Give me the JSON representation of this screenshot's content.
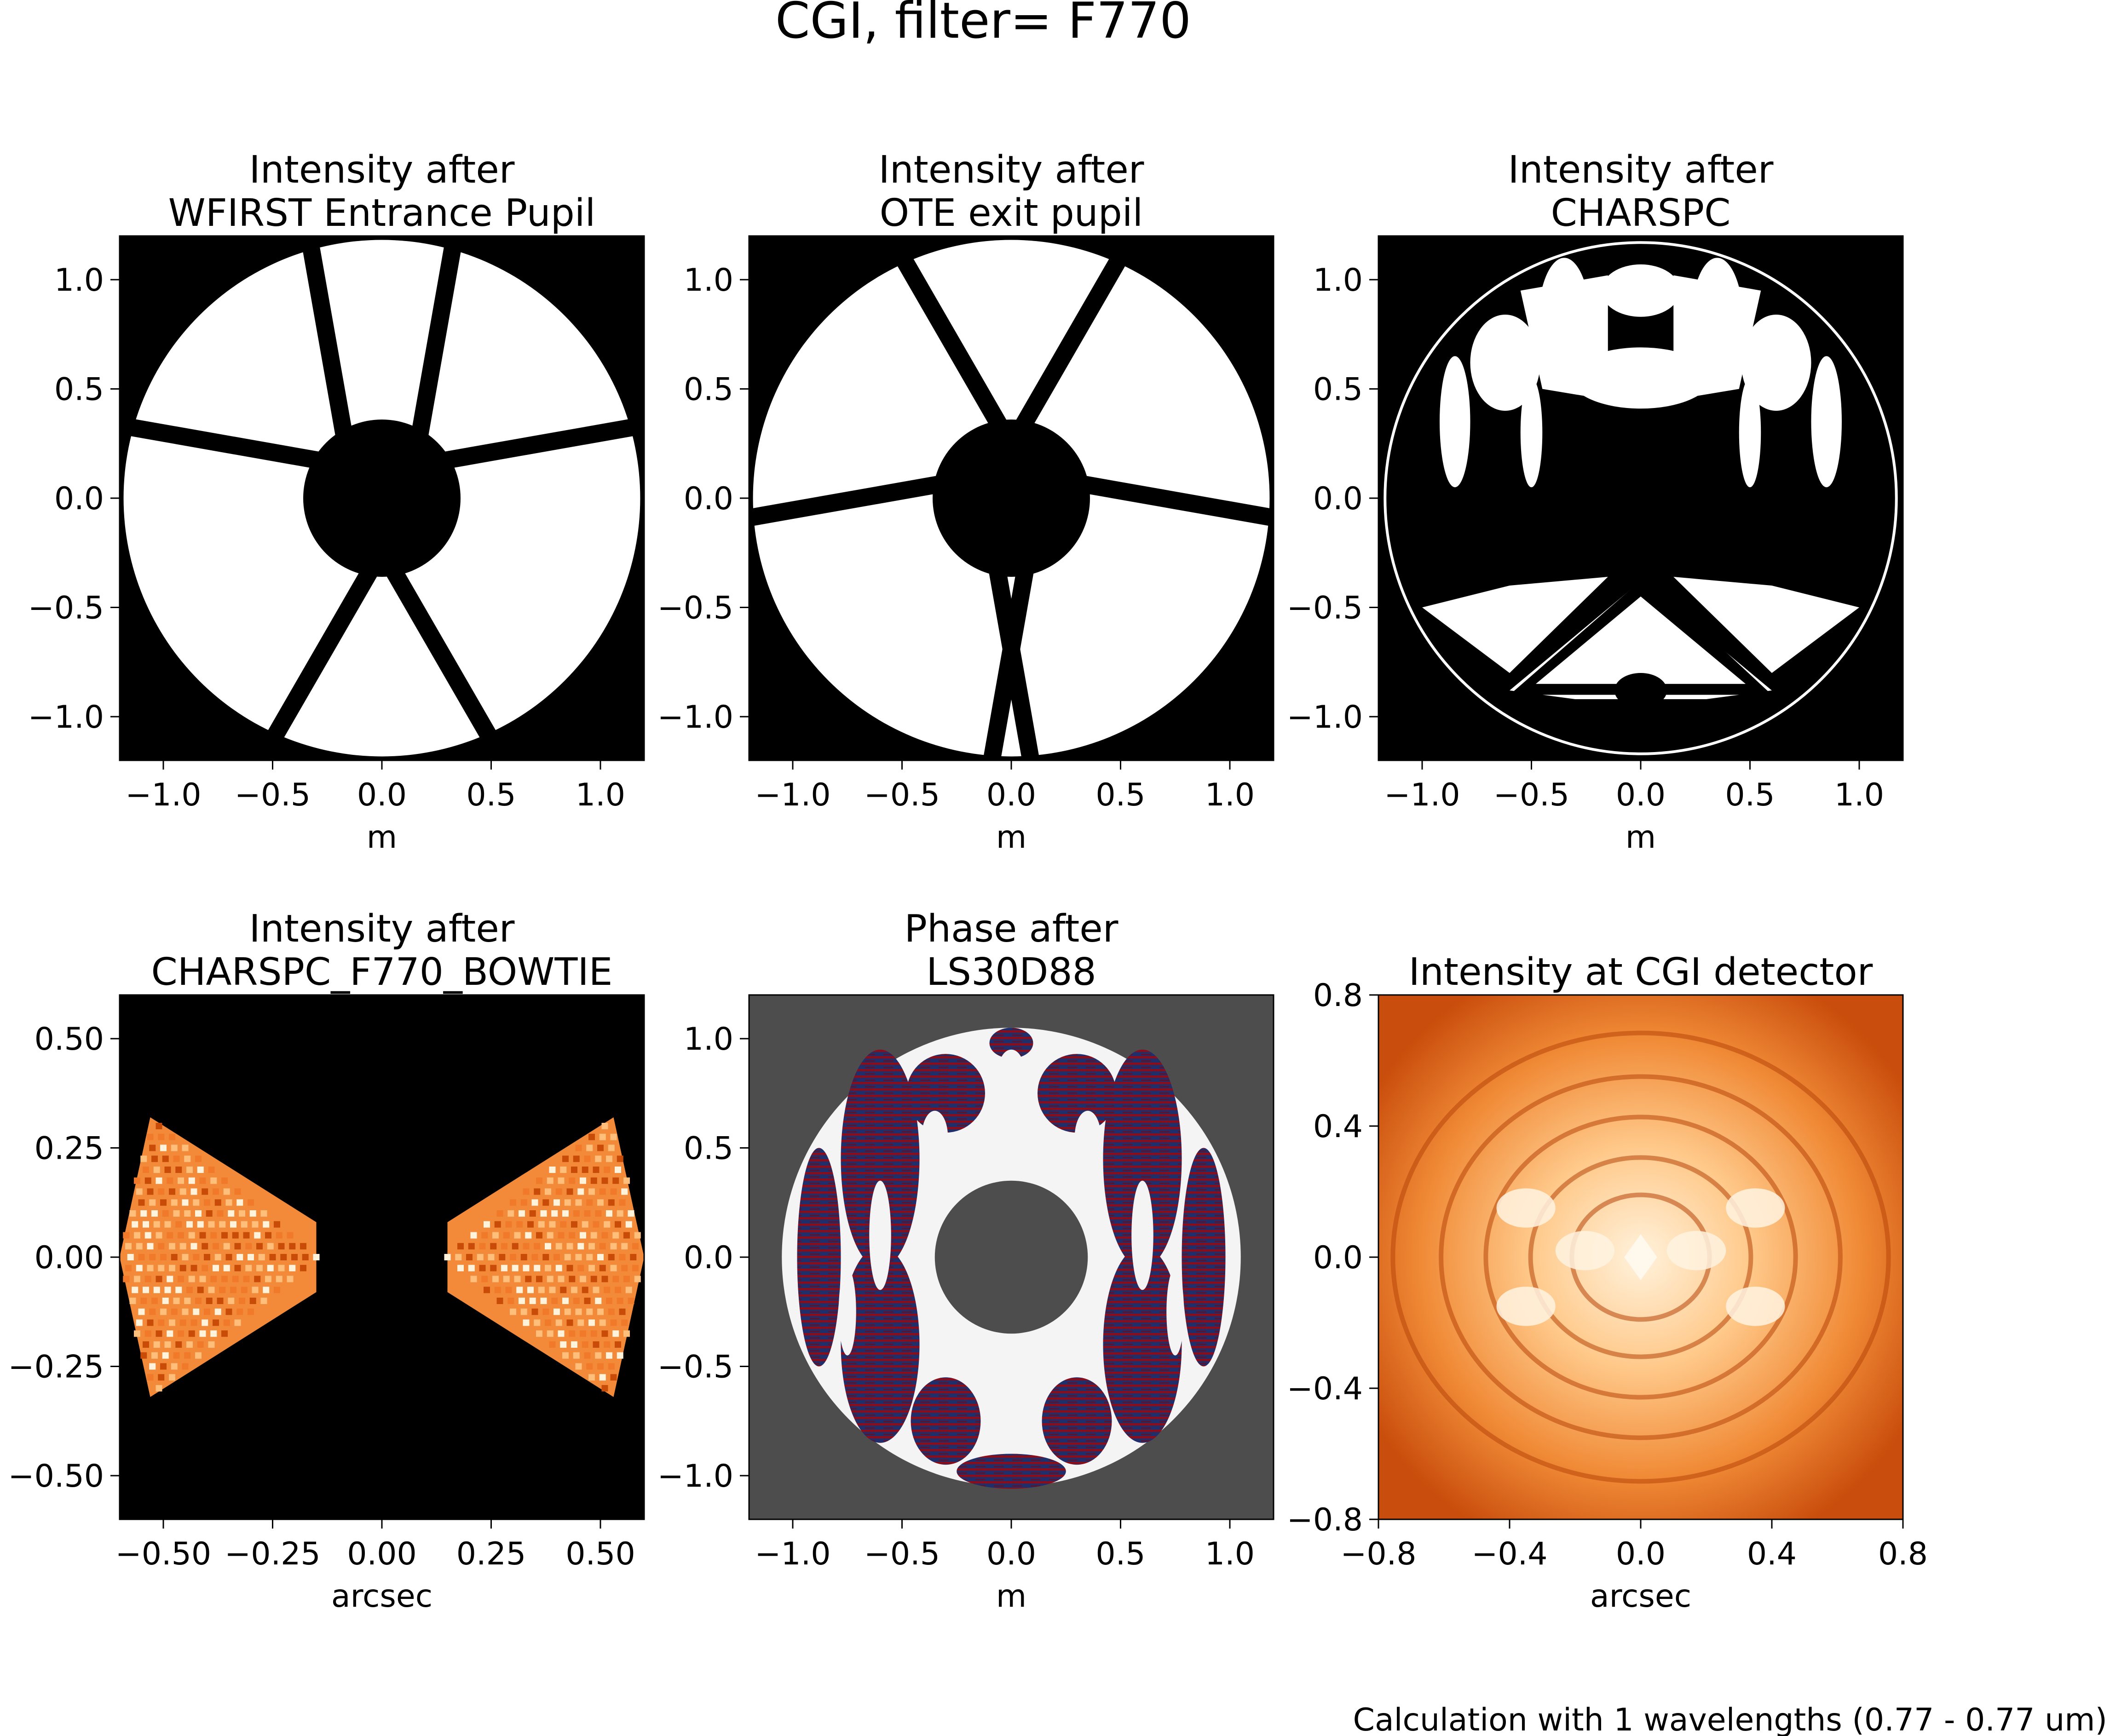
{
  "figure": {
    "title": "CGI, filter= F770",
    "footnote": "Calculation with 1 wavelengths (0.77 - 0.77 um)"
  },
  "colors": {
    "background": "#ffffff",
    "mask_black": "#000000",
    "mask_white": "#ffffff",
    "phase_background": "#4d4d4d",
    "phase_light": "#f4f4f4",
    "phase_red": "#8b0d1a",
    "phase_blue": "#1f2f6b",
    "heat_dark": "#8a2a00",
    "heat_mid": "#e8641a",
    "heat_light": "#fff2dc"
  },
  "chart_data": [
    {
      "type": "heatmap",
      "title_line1": "Intensity after",
      "title_line2": "WFIRST Entrance Pupil",
      "xlabel": "m",
      "ylabel": "",
      "xlim": [
        -1.2,
        1.2
      ],
      "ylim": [
        -1.2,
        1.2
      ],
      "xticks": [
        "−1.0",
        "−0.5",
        "0.0",
        "0.5",
        "1.0"
      ],
      "yticks": [
        "1.0",
        "0.5",
        "0.0",
        "−0.5",
        "−1.0"
      ],
      "image": "pupil",
      "pupil": {
        "outer_radius": 1.2,
        "obscuration_radius": 0.36,
        "strut_angles_deg": [
          -120,
          -60,
          10,
          80,
          100,
          170
        ],
        "strut_width": 0.08
      }
    },
    {
      "type": "heatmap",
      "title_line1": "Intensity after",
      "title_line2": "OTE exit pupil",
      "xlabel": "m",
      "ylabel": "",
      "xlim": [
        -1.2,
        1.2
      ],
      "ylim": [
        -1.2,
        1.2
      ],
      "xticks": [
        "−1.0",
        "−0.5",
        "0.0",
        "0.5",
        "1.0"
      ],
      "yticks": [
        "1.0",
        "0.5",
        "0.0",
        "−0.5",
        "−1.0"
      ],
      "image": "pupil",
      "pupil": {
        "outer_radius": 1.2,
        "obscuration_radius": 0.36,
        "strut_angles_deg": [
          60,
          120,
          -10,
          -80,
          -100,
          190
        ],
        "strut_width": 0.08
      }
    },
    {
      "type": "heatmap",
      "title_line1": "Intensity after",
      "title_line2": "CHARSPC",
      "xlabel": "m",
      "ylabel": "",
      "xlim": [
        -1.2,
        1.2
      ],
      "ylim": [
        -1.2,
        1.2
      ],
      "xticks": [
        "−1.0",
        "−0.5",
        "0.0",
        "0.5",
        "1.0"
      ],
      "yticks": [
        "1.0",
        "0.5",
        "0.0",
        "−0.5",
        "−1.0"
      ],
      "image": "charspc"
    },
    {
      "type": "heatmap",
      "title_line1": "Intensity after",
      "title_line2": "CHARSPC_F770_BOWTIE",
      "xlabel": "arcsec",
      "ylabel": "",
      "xlim": [
        -0.6,
        0.6
      ],
      "ylim": [
        -0.6,
        0.6
      ],
      "xticks": [
        "−0.50",
        "−0.25",
        "0.00",
        "0.25",
        "0.50"
      ],
      "yticks": [
        "0.50",
        "0.25",
        "0.00",
        "−0.25",
        "−0.50"
      ],
      "image": "bowtie"
    },
    {
      "type": "heatmap",
      "title_line1": "Phase after",
      "title_line2": "LS30D88",
      "xlabel": "m",
      "ylabel": "",
      "xlim": [
        -1.2,
        1.2
      ],
      "ylim": [
        -1.2,
        1.2
      ],
      "xticks": [
        "−1.0",
        "−0.5",
        "0.0",
        "0.5",
        "1.0"
      ],
      "yticks": [
        "1.0",
        "0.5",
        "0.0",
        "−0.5",
        "−1.0"
      ],
      "image": "phase",
      "lyot": {
        "outer_radius": 1.05,
        "inner_radius": 0.35
      }
    },
    {
      "type": "heatmap",
      "title_line1": "",
      "title_line2": "Intensity at CGI detector",
      "xlabel": "arcsec",
      "ylabel": "",
      "xlim": [
        -0.8,
        0.8
      ],
      "ylim": [
        -0.8,
        0.8
      ],
      "xticks": [
        "−0.8",
        "−0.4",
        "0.0",
        "0.4",
        "0.8"
      ],
      "yticks": [
        "0.8",
        "0.4",
        "0.0",
        "−0.4",
        "−0.8"
      ],
      "image": "psf"
    }
  ]
}
